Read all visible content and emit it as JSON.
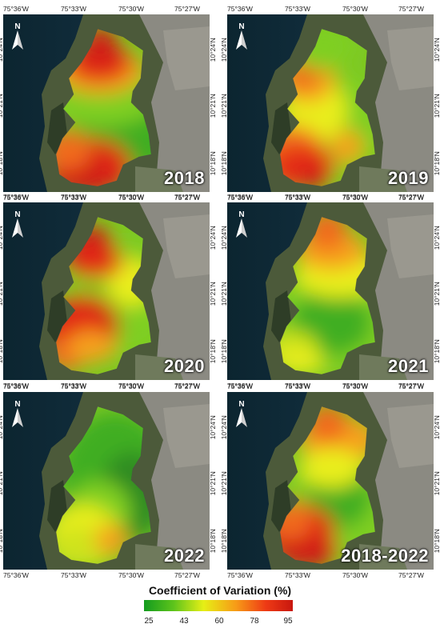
{
  "panels": [
    {
      "year": "2018"
    },
    {
      "year": "2019"
    },
    {
      "year": "2020"
    },
    {
      "year": "2021"
    },
    {
      "year": "2022"
    },
    {
      "year": "2018-2022"
    }
  ],
  "axes": {
    "x_ticks": [
      "75°36'W",
      "75°33'W",
      "75°30'W",
      "75°27'W"
    ],
    "y_ticks": [
      "10°24'N",
      "10°21'N",
      "10°18'N"
    ]
  },
  "north_arrow": {
    "label": "N",
    "icon": "north-arrow-icon"
  },
  "legend": {
    "title": "Coefficient of Variation (%)",
    "ticks": [
      "25",
      "43",
      "60",
      "78",
      "95"
    ],
    "colors": [
      "#139b1e",
      "#e6ef16",
      "#c8170f"
    ]
  }
}
